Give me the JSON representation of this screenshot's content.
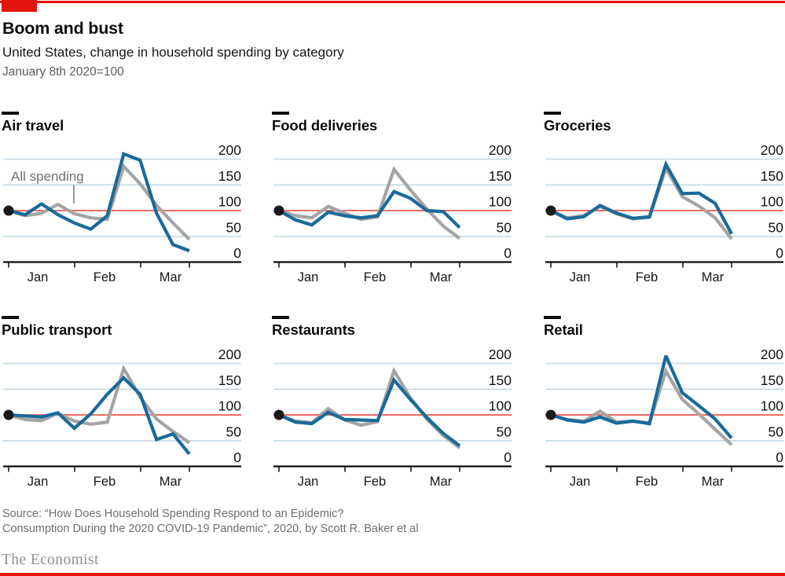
{
  "header": {
    "title": "Boom and bust",
    "subtitle": "United States, change in household spending by category",
    "index_note": "January 8th 2020=100"
  },
  "annotation": {
    "all_spending_label": "All spending"
  },
  "colors": {
    "brand_red": "#e3120b",
    "baseline_red": "#ed5a4f",
    "category_blue": "#1a6a9a",
    "all_spending_gray": "#a5a4a4",
    "gridline_blue": "#c5d8e2",
    "axis_black": "#0d0d0d"
  },
  "chart_data": {
    "type": "line",
    "layout": "2 rows x 3 columns of small multiples",
    "index_note": "January 8th 2020=100",
    "x_axis": {
      "tick_labels": [
        "Jan",
        "Feb",
        "Mar"
      ],
      "period": "weekly samples, early January to late March 2020"
    },
    "y_axis": {
      "ticks": [
        200,
        150,
        100,
        50,
        0
      ],
      "ylim": [
        0,
        220
      ],
      "baseline": 100,
      "grid": true
    },
    "series_names": {
      "category": "category spending",
      "reference": "All spending"
    },
    "panels": [
      {
        "title": "Air travel",
        "blue": [
          100,
          92,
          113,
          92,
          76,
          64,
          90,
          210,
          198,
          95,
          34,
          22
        ],
        "gray": [
          100,
          90,
          95,
          112,
          94,
          86,
          83,
          186,
          152,
          110,
          76,
          44
        ]
      },
      {
        "title": "Food deliveries",
        "blue": [
          100,
          82,
          72,
          97,
          90,
          86,
          90,
          137,
          124,
          100,
          98,
          67
        ],
        "gray": [
          100,
          90,
          86,
          108,
          95,
          83,
          88,
          180,
          140,
          103,
          70,
          46
        ]
      },
      {
        "title": "Groceries",
        "blue": [
          100,
          84,
          88,
          110,
          95,
          85,
          88,
          190,
          133,
          134,
          114,
          55
        ],
        "gray": [
          100,
          86,
          90,
          108,
          94,
          84,
          87,
          182,
          127,
          109,
          86,
          45
        ]
      },
      {
        "title": "Public transport",
        "blue": [
          100,
          98,
          96,
          104,
          74,
          102,
          140,
          172,
          140,
          52,
          63,
          24
        ],
        "gray": [
          100,
          91,
          89,
          103,
          88,
          82,
          86,
          190,
          135,
          92,
          68,
          46
        ]
      },
      {
        "title": "Restaurants",
        "blue": [
          100,
          86,
          83,
          105,
          91,
          90,
          89,
          168,
          130,
          95,
          64,
          40
        ],
        "gray": [
          100,
          88,
          85,
          112,
          90,
          80,
          87,
          186,
          133,
          92,
          60,
          36
        ]
      },
      {
        "title": "Retail",
        "blue": [
          100,
          90,
          86,
          96,
          84,
          88,
          83,
          215,
          143,
          118,
          92,
          55
        ],
        "gray": [
          100,
          91,
          88,
          107,
          86,
          88,
          84,
          185,
          130,
          102,
          72,
          42
        ]
      }
    ]
  },
  "footer": {
    "source_line1": "Source: “How Does Household Spending Respond to an Epidemic?",
    "source_line2": "Consumption During the 2020 COVID-19 Pandemic”, 2020, by Scott R. Baker et al",
    "brand": "The Economist"
  }
}
